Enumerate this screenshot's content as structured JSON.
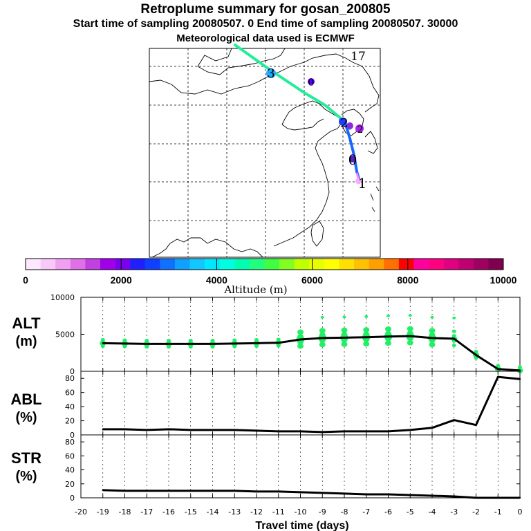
{
  "header": {
    "title": "Retroplume summary for gosan_200805",
    "sampling_line": "Start time of sampling 20080507.    0     End time of sampling 20080507. 30000",
    "met_line": "Meteorological data used is ECMWF"
  },
  "map": {
    "label": "17",
    "plume_markers": [
      "3",
      "0",
      "2",
      "2",
      "0",
      "1"
    ]
  },
  "colorbar": {
    "ticks": [
      "0",
      "2000",
      "4000",
      "6000",
      "8000",
      "10000"
    ],
    "label": "Altitude (m)",
    "colors": [
      "#fde8fd",
      "#f8c8f8",
      "#f0a0f0",
      "#e070e8",
      "#c040e0",
      "#a000e8",
      "#7a00f0",
      "#2020ff",
      "#1040ff",
      "#1070ff",
      "#10a0ff",
      "#10c8ff",
      "#00e8ff",
      "#00ffe0",
      "#00ffb0",
      "#20ff80",
      "#40ff40",
      "#80ff20",
      "#c0ff00",
      "#e8ff00",
      "#ffff00",
      "#ffe000",
      "#ffc000",
      "#ffa000",
      "#ff7000",
      "#ff0000",
      "#ff00a0",
      "#ff0080",
      "#e00080",
      "#c00070",
      "#a00060",
      "#800050"
    ]
  },
  "chart_data": [
    {
      "type": "line",
      "name": "ALT",
      "ylabel_line1": "ALT",
      "ylabel_line2": "(m)",
      "ylim": [
        0,
        10000
      ],
      "yticks": [
        "0",
        "5000",
        "10000"
      ],
      "x": [
        -19,
        -18,
        -17,
        -16,
        -15,
        -14,
        -13,
        -12,
        -11,
        -10,
        -9,
        -8,
        -7,
        -6,
        -5,
        -4,
        -3,
        -2,
        -1,
        0
      ],
      "values": [
        3800,
        3750,
        3700,
        3700,
        3700,
        3700,
        3750,
        3800,
        3850,
        4300,
        4500,
        4550,
        4600,
        4700,
        4750,
        4500,
        4400,
        2200,
        300,
        100
      ],
      "scatter_color": "#22ee66"
    },
    {
      "type": "line",
      "name": "ABL",
      "ylabel_line1": "ABL",
      "ylabel_line2": "(%)",
      "ylim": [
        0,
        90
      ],
      "yticks": [
        "0",
        "20",
        "40",
        "60",
        "80"
      ],
      "x": [
        -19,
        -18,
        -17,
        -16,
        -15,
        -14,
        -13,
        -12,
        -11,
        -10,
        -9,
        -8,
        -7,
        -6,
        -5,
        -4,
        -3,
        -2,
        -1,
        0
      ],
      "values": [
        8,
        8,
        7,
        8,
        7,
        7,
        7,
        6,
        5,
        5,
        4,
        5,
        5,
        5,
        7,
        10,
        21,
        14,
        82,
        79
      ]
    },
    {
      "type": "line",
      "name": "STR",
      "ylabel_line1": "STR",
      "ylabel_line2": "(%)",
      "ylim": [
        0,
        90
      ],
      "yticks": [
        "0",
        "20",
        "40",
        "60",
        "80"
      ],
      "x": [
        -19,
        -18,
        -17,
        -16,
        -15,
        -14,
        -13,
        -12,
        -11,
        -10,
        -9,
        -8,
        -7,
        -6,
        -5,
        -4,
        -3,
        -2,
        -1,
        0
      ],
      "values": [
        11,
        10,
        10,
        10,
        10,
        10,
        10,
        9,
        9,
        8,
        7,
        6,
        5,
        5,
        4,
        3,
        2,
        0,
        0,
        0
      ]
    }
  ],
  "xaxis": {
    "label": "Travel time (days)",
    "ticks": [
      "-20",
      "-19",
      "-18",
      "-17",
      "-16",
      "-15",
      "-14",
      "-13",
      "-12",
      "-11",
      "-10",
      "-9",
      "-8",
      "-7",
      "-6",
      "-5",
      "-4",
      "-3",
      "-2",
      "-1",
      "0"
    ]
  }
}
